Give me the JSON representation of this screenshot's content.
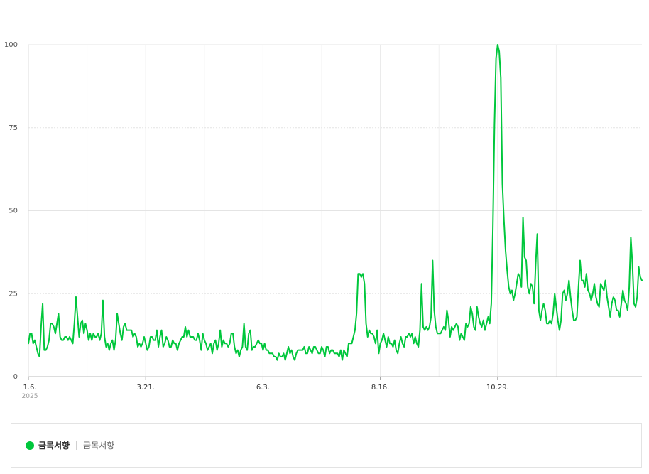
{
  "chart_data": {
    "type": "line",
    "y_ticks": [
      "100",
      "75",
      "50",
      "25",
      "0"
    ],
    "ylim": [
      0,
      100
    ],
    "x_ticks": [
      {
        "label": "1.6.",
        "sub": "2025",
        "pos": 0
      },
      {
        "label": "3.21.",
        "pos": 74
      },
      {
        "label": "6.3.",
        "pos": 148
      },
      {
        "label": "8.16.",
        "pos": 222
      },
      {
        "label": "10.29.",
        "pos": 296
      }
    ],
    "grid": true,
    "series": [
      {
        "name": "금목서향",
        "color": "#00c73c",
        "values": [
          10,
          13,
          13,
          10,
          11,
          9,
          7,
          6,
          15,
          22,
          8,
          8,
          9,
          11,
          16,
          16,
          15,
          13,
          16,
          19,
          12,
          11,
          11,
          12,
          12,
          11,
          12,
          11,
          10,
          16,
          24,
          18,
          12,
          16,
          17,
          13,
          16,
          14,
          11,
          13,
          11,
          13,
          12,
          12,
          13,
          11,
          13,
          23,
          12,
          9,
          10,
          8,
          10,
          11,
          8,
          11,
          19,
          16,
          13,
          11,
          15,
          16,
          14,
          14,
          14,
          14,
          12,
          13,
          12,
          9,
          10,
          9,
          10,
          12,
          10,
          8,
          9,
          12,
          12,
          11,
          11,
          14,
          9,
          12,
          14,
          9,
          10,
          12,
          11,
          9,
          9,
          11,
          10,
          10,
          8,
          10,
          11,
          12,
          12,
          15,
          12,
          14,
          12,
          12,
          12,
          11,
          11,
          13,
          11,
          8,
          13,
          11,
          10,
          8,
          9,
          10,
          7,
          10,
          11,
          8,
          10,
          14,
          9,
          11,
          10,
          10,
          9,
          10,
          13,
          13,
          9,
          7,
          8,
          6,
          8,
          9,
          16,
          9,
          8,
          13,
          14,
          8,
          9,
          9,
          10,
          11,
          10,
          10,
          8,
          10,
          8,
          8,
          7,
          7,
          7,
          6,
          6,
          5,
          7,
          6,
          6,
          7,
          5,
          7,
          9,
          7,
          8,
          6,
          5,
          7,
          8,
          8,
          8,
          8,
          9,
          7,
          7,
          9,
          8,
          7,
          9,
          9,
          8,
          7,
          7,
          9,
          8,
          6,
          9,
          9,
          7,
          8,
          8,
          7,
          7,
          7,
          6,
          8,
          5,
          8,
          7,
          6,
          10,
          10,
          10,
          12,
          14,
          19,
          31,
          31,
          30,
          31,
          28,
          16,
          12,
          14,
          13,
          13,
          12,
          10,
          14,
          7,
          10,
          11,
          13,
          11,
          9,
          12,
          10,
          10,
          9,
          11,
          8,
          7,
          10,
          12,
          10,
          9,
          12,
          12,
          13,
          12,
          13,
          10,
          12,
          10,
          9,
          14,
          28,
          15,
          14,
          15,
          14,
          15,
          18,
          35,
          20,
          15,
          13,
          13,
          13,
          14,
          15,
          14,
          20,
          17,
          12,
          15,
          14,
          15,
          16,
          15,
          11,
          13,
          12,
          11,
          16,
          15,
          16,
          21,
          19,
          15,
          14,
          21,
          18,
          16,
          15,
          17,
          14,
          16,
          18,
          16,
          22,
          45,
          76,
          96,
          100,
          98,
          90,
          58,
          47,
          38,
          32,
          27,
          25,
          26,
          23,
          25,
          28,
          31,
          30,
          27,
          48,
          36,
          35,
          27,
          25,
          28,
          27,
          22,
          34,
          43,
          20,
          17,
          20,
          22,
          20,
          16,
          16,
          17,
          16,
          19,
          25,
          21,
          17,
          14,
          17,
          25,
          26,
          23,
          25,
          29,
          24,
          20,
          17,
          17,
          18,
          27,
          35,
          29,
          29,
          27,
          31,
          26,
          25,
          23,
          25,
          28,
          24,
          22,
          21,
          28,
          27,
          26,
          29,
          24,
          21,
          18,
          22,
          24,
          23,
          20,
          20,
          18,
          22,
          26,
          23,
          22,
          20,
          27,
          42,
          34,
          22,
          21,
          24,
          33,
          30,
          29
        ]
      }
    ]
  },
  "legend": {
    "name": "금목서향",
    "sub_label": "금목서향",
    "color": "#00c73c"
  }
}
